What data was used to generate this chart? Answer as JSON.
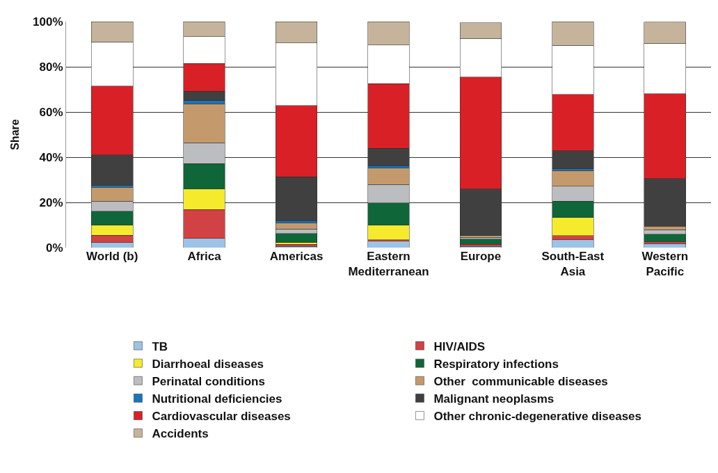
{
  "chart_data": {
    "type": "bar",
    "stacked": true,
    "ylabel": "Share",
    "categories": [
      "World (b)",
      "Africa",
      "Americas",
      "Eastern\nMediterranean",
      "Europe",
      "South-East\nAsia",
      "Western\nPacific"
    ],
    "ylim": [
      0,
      100
    ],
    "yticks": [
      {
        "value": 0,
        "label": "0%"
      },
      {
        "value": 20,
        "label": "20%"
      },
      {
        "value": 40,
        "label": "40%"
      },
      {
        "value": 60,
        "label": "60%"
      },
      {
        "value": 80,
        "label": "80%"
      },
      {
        "value": 100,
        "label": "100%"
      }
    ],
    "grid": "y",
    "legend": "bottom",
    "series": [
      {
        "name": "TB",
        "color": "#9dc3e6",
        "values": [
          2.3,
          4.1,
          0.5,
          2.9,
          0.5,
          3.4,
          1.8
        ]
      },
      {
        "name": "HIV/AIDS",
        "color": "#d24244",
        "values": [
          3.2,
          12.8,
          0.9,
          0.6,
          1.0,
          1.9,
          0.9
        ]
      },
      {
        "name": "Diarrhoeal diseases",
        "color": "#f5ea2c",
        "values": [
          4.4,
          9.0,
          0.8,
          6.4,
          null,
          8.0,
          null
        ]
      },
      {
        "name": "Respiratory infections",
        "color": "#0f6638",
        "values": [
          6.2,
          11.3,
          4.0,
          9.8,
          2.3,
          7.2,
          3.3
        ]
      },
      {
        "name": "Perinatal conditions",
        "color": "#bcbdc0",
        "values": [
          4.4,
          9.2,
          2.0,
          8.2,
          0.8,
          6.7,
          1.9
        ]
      },
      {
        "name": "Other  communicable diseases",
        "color": "#c49a6c",
        "values": [
          6.2,
          17.2,
          2.6,
          7.3,
          0.7,
          6.9,
          1.5
        ]
      },
      {
        "name": "Nutritional deficiencies",
        "color": "#1a75bb",
        "values": [
          0.9,
          1.4,
          1.2,
          1.1,
          null,
          0.8,
          null
        ]
      },
      {
        "name": "Malignant neoplasms",
        "color": "#404040",
        "values": [
          13.4,
          4.2,
          19.3,
          7.7,
          20.6,
          8.0,
          21.2
        ]
      },
      {
        "name": "Cardiovascular diseases",
        "color": "#d92027",
        "values": [
          30.5,
          12.2,
          31.6,
          28.5,
          49.5,
          24.9,
          37.5
        ]
      },
      {
        "name": "Other chronic-degenerative diseases",
        "color": "#ffffff",
        "values": [
          19.5,
          11.9,
          27.7,
          17.1,
          17.2,
          21.7,
          22.3
        ]
      },
      {
        "name": "Accidents",
        "color": "#c5b49b",
        "values": [
          9.0,
          6.7,
          9.4,
          10.4,
          6.9,
          10.5,
          9.3
        ]
      }
    ]
  }
}
